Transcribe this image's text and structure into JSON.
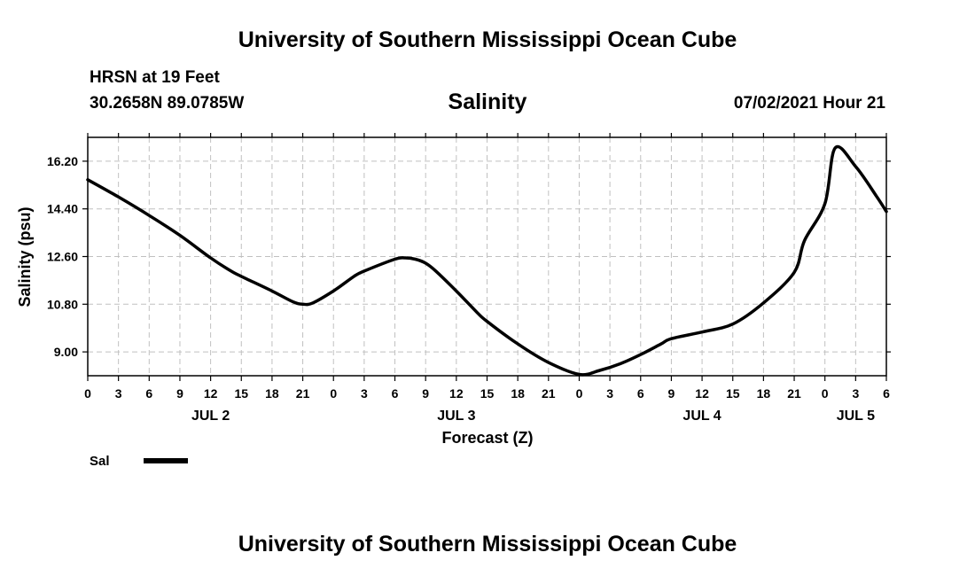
{
  "header": {
    "title": "University of Southern Mississippi Ocean Cube",
    "station": "HRSN at 19 Feet",
    "coords": "30.2658N  89.0785W",
    "subtitle": "Salinity",
    "datetime": "07/02/2021 Hour 21"
  },
  "footer": {
    "title": "University of Southern Mississippi Ocean Cube"
  },
  "colors": {
    "line": "#000000",
    "grid": "#c0c0c0"
  },
  "chart_data": {
    "type": "line",
    "title": "Salinity",
    "xlabel": "Forecast (Z)",
    "ylabel": "Salinity (psu)",
    "xlim": [
      0,
      78
    ],
    "ylim": [
      8.1,
      17.1
    ],
    "yticks": [
      9.0,
      10.8,
      12.6,
      14.4,
      16.2
    ],
    "ytick_labels": [
      "9.00",
      "10.80",
      "12.60",
      "14.40",
      "16.20"
    ],
    "xticks": [
      0,
      3,
      6,
      9,
      12,
      15,
      18,
      21,
      24,
      27,
      30,
      33,
      36,
      39,
      42,
      45,
      48,
      51,
      54,
      57,
      60,
      63,
      66,
      69,
      72,
      75,
      78
    ],
    "xtick_labels": [
      "0",
      "3",
      "6",
      "9",
      "12",
      "15",
      "18",
      "21",
      "0",
      "3",
      "6",
      "9",
      "12",
      "15",
      "18",
      "21",
      "0",
      "3",
      "6",
      "9",
      "12",
      "15",
      "18",
      "21",
      "0",
      "3",
      "6"
    ],
    "day_labels": [
      {
        "text": "JUL 2",
        "x": 12
      },
      {
        "text": "JUL 3",
        "x": 36
      },
      {
        "text": "JUL 4",
        "x": 60
      },
      {
        "text": "JUL 5",
        "x": 75
      }
    ],
    "grid": true,
    "legend": {
      "position": "bottom-left",
      "label": "Sal"
    },
    "series": [
      {
        "name": "Sal",
        "x": [
          0,
          3,
          6,
          9,
          12,
          14,
          15,
          18,
          20,
          21,
          22,
          24,
          26,
          27,
          30,
          31,
          32,
          33,
          34,
          36,
          38,
          39,
          42,
          45,
          48,
          50,
          52,
          54,
          56,
          57,
          60,
          63,
          66,
          69,
          70,
          72,
          73,
          75,
          77,
          78
        ],
        "y": [
          15.5,
          14.85,
          14.15,
          13.4,
          12.55,
          12.05,
          11.85,
          11.3,
          10.9,
          10.8,
          10.85,
          11.3,
          11.85,
          12.05,
          12.5,
          12.55,
          12.5,
          12.35,
          12.05,
          11.3,
          10.5,
          10.15,
          9.3,
          8.6,
          8.15,
          8.3,
          8.55,
          8.9,
          9.3,
          9.5,
          9.75,
          10.05,
          10.85,
          12.0,
          13.2,
          14.6,
          16.7,
          16.0,
          14.9,
          14.3
        ]
      }
    ]
  }
}
